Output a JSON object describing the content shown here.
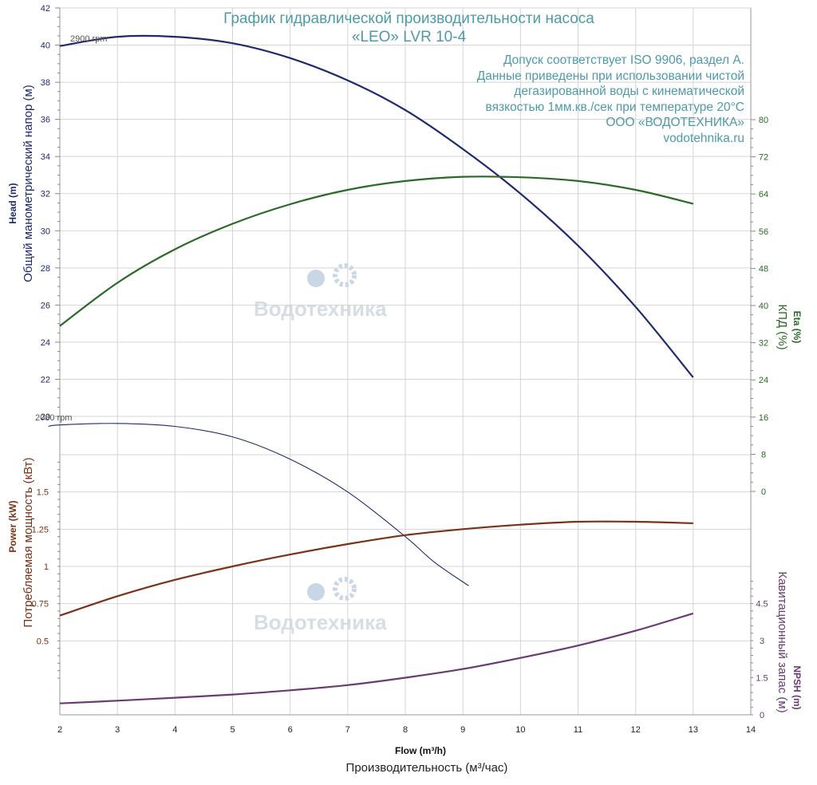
{
  "title_lines": [
    "График гидравлической производительности насоса",
    "«LEO» LVR 10-4"
  ],
  "notes": [
    "Допуск соответствует ISO 9906, раздел А.",
    "Данные приведены при использовании чистой",
    "дегазированной воды с кинематической",
    "вязкостью 1мм.кв./сек при температуре 20°C",
    "ООО «ВОДОТЕХНИКА»",
    "vodotehnika.ru"
  ],
  "watermark": {
    "brand": "Водотехника"
  },
  "colors": {
    "head": "#1f2a6e",
    "eta": "#2a6a26",
    "power": "#7a3218",
    "npsh": "#6b3a75",
    "grid": "#d5d5d5",
    "note": "#4f9aa8"
  },
  "chart_data": {
    "type": "line",
    "x_axis": {
      "label_en": "Flow (m³/h)",
      "label_ru": "Производительность (м³/час)",
      "range": [
        2,
        14
      ],
      "ticks": [
        2,
        3,
        4,
        5,
        6,
        7,
        8,
        9,
        10,
        11,
        12,
        13,
        14
      ]
    },
    "axes": {
      "head": {
        "label_en": "Head (m)",
        "label_ru": "Общий манометрический напор (м)",
        "range": [
          20,
          42
        ],
        "ticks": [
          20,
          22,
          24,
          26,
          28,
          30,
          32,
          34,
          36,
          38,
          40,
          42
        ]
      },
      "eta": {
        "label_en": "Eta (%)",
        "label_ru": "КПД (%)",
        "range": [
          0,
          80
        ],
        "ticks": [
          0,
          8,
          16,
          24,
          32,
          40,
          48,
          56,
          64,
          72,
          80
        ]
      },
      "power": {
        "label_en": "Power (kW)",
        "label_ru": "Потребляемая мощность (кВт)",
        "range": [
          0.25,
          1.75
        ],
        "ticks": [
          0.5,
          0.75,
          1,
          1.25,
          1.5
        ]
      },
      "npsh": {
        "label_en": "NPSH (m)",
        "label_ru": "Кавитационный запас (м)",
        "range": [
          0,
          6
        ],
        "ticks": [
          0,
          1.5,
          3,
          4.5
        ]
      }
    },
    "speed_labels": [
      "2900 rpm",
      "2080 rpm"
    ],
    "series": [
      {
        "key": "head",
        "axis": "head",
        "x": [
          2,
          3,
          4,
          5,
          6,
          7,
          8,
          9,
          10,
          11,
          12,
          13
        ],
        "y": [
          39.95,
          40.45,
          40.45,
          40.1,
          39.3,
          38.1,
          36.5,
          34.4,
          32.0,
          29.2,
          25.9,
          22.1
        ]
      },
      {
        "key": "head_2080",
        "axis": "power",
        "x": [
          1.8,
          2.0,
          3.0,
          4.0,
          5.0,
          6.0,
          7.0,
          8.0,
          8.5,
          9.1
        ],
        "y": [
          1.94,
          1.95,
          1.96,
          1.94,
          1.87,
          1.72,
          1.5,
          1.2,
          1.03,
          0.87
        ]
      },
      {
        "key": "eta",
        "axis": "eta",
        "x": [
          2,
          3,
          4,
          5,
          6,
          7,
          8,
          9,
          10,
          11,
          12,
          13
        ],
        "y": [
          35.6,
          44.9,
          52.1,
          57.6,
          61.8,
          64.9,
          66.8,
          67.7,
          67.6,
          66.8,
          64.9,
          61.9
        ]
      },
      {
        "key": "power",
        "axis": "power",
        "x": [
          2,
          3,
          4,
          5,
          6,
          7,
          8,
          9,
          10,
          11,
          12,
          13
        ],
        "y": [
          0.67,
          0.8,
          0.91,
          1.0,
          1.08,
          1.15,
          1.21,
          1.25,
          1.28,
          1.3,
          1.3,
          1.29
        ]
      },
      {
        "key": "npsh",
        "axis": "npsh",
        "x": [
          2,
          3,
          4,
          5,
          6,
          7,
          8,
          9,
          10,
          11,
          12,
          13
        ],
        "y": [
          0.46,
          0.57,
          0.69,
          0.82,
          0.99,
          1.2,
          1.5,
          1.85,
          2.3,
          2.8,
          3.4,
          4.1
        ]
      }
    ]
  }
}
